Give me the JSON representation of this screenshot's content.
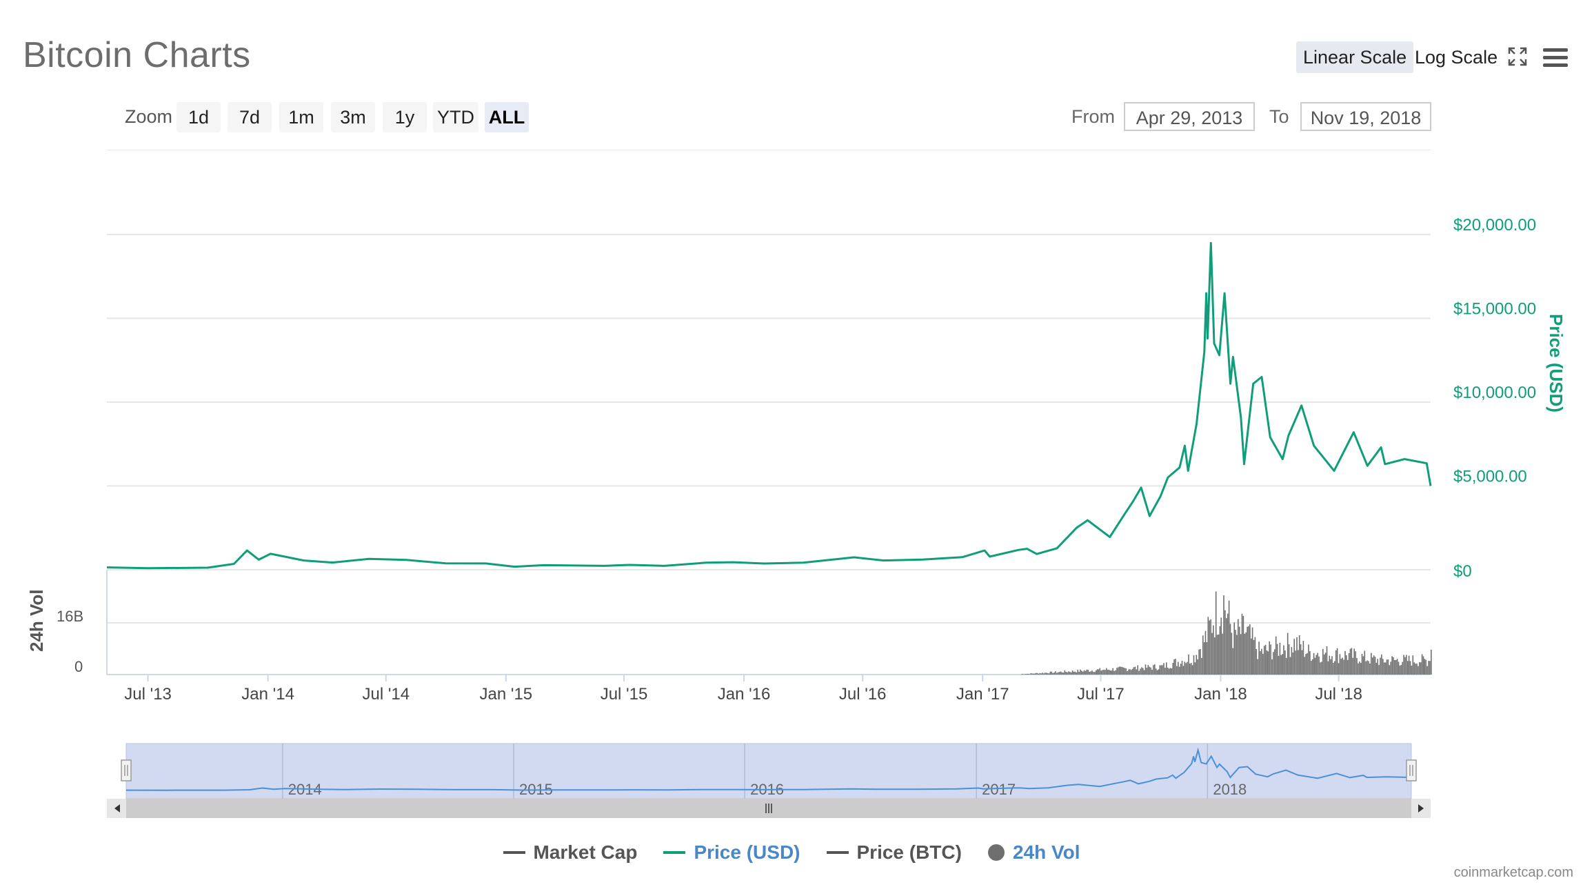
{
  "header": {
    "title": "Bitcoin Charts",
    "linear_scale_label": "Linear Scale",
    "log_scale_label": "Log Scale"
  },
  "zoom": {
    "label": "Zoom",
    "buttons": [
      "1d",
      "7d",
      "1m",
      "3m",
      "1y",
      "YTD",
      "ALL"
    ],
    "active": "ALL"
  },
  "range": {
    "from_label": "From",
    "from_value": "Apr 29, 2013",
    "to_label": "To",
    "to_value": "Nov 19, 2018"
  },
  "colors": {
    "price_usd": "#0f9d7a",
    "volume": "#6e6e6e",
    "market_cap": "#555555",
    "price_btc": "#555555",
    "navigator_fill": "#c9d4ee",
    "navigator_line": "#4a90d9",
    "legend_active_text": "#4a86c8"
  },
  "legend": {
    "market_cap": "Market Cap",
    "price_usd": "Price (USD)",
    "price_btc": "Price (BTC)",
    "volume": "24h Vol"
  },
  "credits": "coinmarketcap.com",
  "chart_data": {
    "type": "line",
    "x_start": "2013-04-29",
    "x_end": "2018-11-19",
    "x_tick_labels": [
      "Jul '13",
      "Jan '14",
      "Jul '14",
      "Jan '15",
      "Jul '15",
      "Jan '16",
      "Jul '16",
      "Jan '17",
      "Jul '17",
      "Jan '18",
      "Jul '18"
    ],
    "x_tick_dates": [
      "2013-07-01",
      "2014-01-01",
      "2014-07-01",
      "2015-01-01",
      "2015-07-01",
      "2016-01-01",
      "2016-07-01",
      "2017-01-01",
      "2017-07-01",
      "2018-01-01",
      "2018-07-01"
    ],
    "price_axis": {
      "label": "Price (USD)",
      "ticks": [
        "$0",
        "$5,000.00",
        "$10,000.00",
        "$15,000.00",
        "$20,000.00"
      ],
      "tick_values": [
        0,
        5000,
        10000,
        15000,
        20000
      ],
      "ylim": [
        0,
        20000
      ],
      "position": "right"
    },
    "volume_axis": {
      "label": "24h Vol",
      "ticks": [
        "0",
        "16B"
      ],
      "tick_values": [
        0,
        16000000000
      ],
      "position": "left"
    },
    "series": [
      {
        "name": "Price (USD)",
        "points": [
          [
            "2013-04-29",
            140
          ],
          [
            "2013-07-01",
            90
          ],
          [
            "2013-10-01",
            125
          ],
          [
            "2013-11-10",
            350
          ],
          [
            "2013-11-30",
            1150
          ],
          [
            "2013-12-18",
            600
          ],
          [
            "2014-01-05",
            950
          ],
          [
            "2014-02-25",
            550
          ],
          [
            "2014-04-10",
            430
          ],
          [
            "2014-06-05",
            650
          ],
          [
            "2014-08-01",
            590
          ],
          [
            "2014-10-01",
            380
          ],
          [
            "2014-12-01",
            375
          ],
          [
            "2015-01-14",
            180
          ],
          [
            "2015-03-01",
            270
          ],
          [
            "2015-06-01",
            230
          ],
          [
            "2015-07-10",
            290
          ],
          [
            "2015-09-01",
            230
          ],
          [
            "2015-11-04",
            420
          ],
          [
            "2015-12-15",
            450
          ],
          [
            "2016-02-01",
            370
          ],
          [
            "2016-04-01",
            420
          ],
          [
            "2016-06-18",
            740
          ],
          [
            "2016-08-02",
            550
          ],
          [
            "2016-10-01",
            610
          ],
          [
            "2016-12-01",
            750
          ],
          [
            "2017-01-04",
            1150
          ],
          [
            "2017-01-12",
            780
          ],
          [
            "2017-02-25",
            1180
          ],
          [
            "2017-03-10",
            1250
          ],
          [
            "2017-03-25",
            940
          ],
          [
            "2017-04-25",
            1280
          ],
          [
            "2017-05-25",
            2500
          ],
          [
            "2017-06-11",
            2950
          ],
          [
            "2017-07-15",
            1950
          ],
          [
            "2017-08-08",
            3400
          ],
          [
            "2017-08-20",
            4100
          ],
          [
            "2017-09-01",
            4900
          ],
          [
            "2017-09-14",
            3200
          ],
          [
            "2017-10-01",
            4400
          ],
          [
            "2017-10-12",
            5500
          ],
          [
            "2017-10-30",
            6100
          ],
          [
            "2017-11-07",
            7400
          ],
          [
            "2017-11-12",
            5900
          ],
          [
            "2017-11-25",
            8700
          ],
          [
            "2017-12-07",
            13000
          ],
          [
            "2017-12-10",
            16500
          ],
          [
            "2017-12-12",
            13800
          ],
          [
            "2017-12-17",
            19500
          ],
          [
            "2017-12-22",
            13500
          ],
          [
            "2017-12-30",
            12800
          ],
          [
            "2018-01-07",
            16500
          ],
          [
            "2018-01-16",
            11100
          ],
          [
            "2018-01-20",
            12700
          ],
          [
            "2018-02-01",
            9100
          ],
          [
            "2018-02-06",
            6300
          ],
          [
            "2018-02-20",
            11100
          ],
          [
            "2018-03-05",
            11500
          ],
          [
            "2018-03-18",
            7900
          ],
          [
            "2018-04-06",
            6600
          ],
          [
            "2018-04-15",
            8000
          ],
          [
            "2018-05-05",
            9800
          ],
          [
            "2018-05-24",
            7400
          ],
          [
            "2018-06-24",
            5900
          ],
          [
            "2018-07-24",
            8200
          ],
          [
            "2018-08-14",
            6200
          ],
          [
            "2018-09-04",
            7300
          ],
          [
            "2018-09-10",
            6300
          ],
          [
            "2018-10-10",
            6600
          ],
          [
            "2018-11-13",
            6350
          ],
          [
            "2018-11-19",
            5000
          ]
        ]
      },
      {
        "name": "24h Vol",
        "points": [
          [
            "2013-04-29",
            0
          ],
          [
            "2017-03-01",
            0.15
          ],
          [
            "2017-06-01",
            1.2
          ],
          [
            "2017-08-01",
            1.8
          ],
          [
            "2017-10-01",
            2.5
          ],
          [
            "2017-11-20",
            5.5
          ],
          [
            "2017-12-10",
            12
          ],
          [
            "2017-12-22",
            19
          ],
          [
            "2018-01-05",
            23
          ],
          [
            "2018-01-20",
            12
          ],
          [
            "2018-02-06",
            14
          ],
          [
            "2018-03-01",
            7
          ],
          [
            "2018-04-25",
            10
          ],
          [
            "2018-05-15",
            7
          ],
          [
            "2018-07-20",
            6
          ],
          [
            "2018-09-01",
            4.5
          ],
          [
            "2018-11-15",
            4.5
          ],
          [
            "2018-11-19",
            8
          ]
        ],
        "unit": "billions USD"
      }
    ],
    "navigator": {
      "year_labels": [
        "2014",
        "2015",
        "2016",
        "2017",
        "2018"
      ]
    },
    "grid": true,
    "legend_position": "bottom"
  }
}
